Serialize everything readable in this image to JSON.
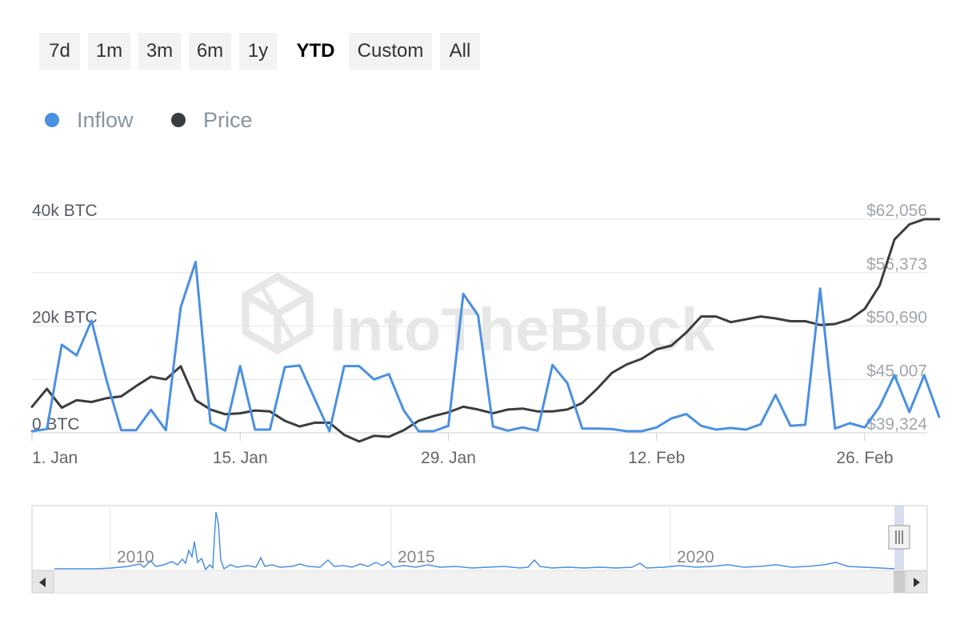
{
  "range_selector": {
    "buttons": [
      "7d",
      "1m",
      "3m",
      "6m",
      "1y",
      "YTD",
      "Custom",
      "All"
    ],
    "active": "YTD"
  },
  "legend": {
    "items": [
      {
        "label": "Inflow",
        "color": "#4a90e2"
      },
      {
        "label": "Price",
        "color": "#3a3d40"
      }
    ]
  },
  "watermark": "IntoTheBlock",
  "chart_data": {
    "type": "line",
    "title": "",
    "x_labels": [
      "1. Jan",
      "15. Jan",
      "29. Jan",
      "12. Feb",
      "26. Feb"
    ],
    "x_label_days": [
      1,
      15,
      29,
      43,
      57
    ],
    "x_range_days": [
      1,
      61.2
    ],
    "y_left": {
      "ticks": [
        "0 BTC",
        "20k BTC",
        "40k BTC"
      ],
      "tick_values": [
        0,
        20000,
        40000
      ],
      "range": [
        0,
        40000
      ]
    },
    "y_right": {
      "ticks": [
        "$39,324",
        "$45,007",
        "$50,690",
        "$56,373",
        "$62,056"
      ],
      "tick_values": [
        39324,
        45007,
        50690,
        56373,
        62056
      ],
      "range": [
        39324,
        62056
      ]
    },
    "grid": true,
    "legend_position": "top-left",
    "series": [
      {
        "name": "Inflow",
        "axis": "left",
        "color": "#4a90e2",
        "points": [
          [
            1,
            300
          ],
          [
            2,
            700
          ],
          [
            3,
            16500
          ],
          [
            4,
            14500
          ],
          [
            5,
            21000
          ],
          [
            6,
            10000
          ],
          [
            7,
            500
          ],
          [
            8,
            500
          ],
          [
            9,
            4300
          ],
          [
            10,
            500
          ],
          [
            11,
            23500
          ],
          [
            12,
            32000
          ],
          [
            13,
            1800
          ],
          [
            14,
            400
          ],
          [
            15,
            12500
          ],
          [
            16,
            600
          ],
          [
            17,
            600
          ],
          [
            18,
            12300
          ],
          [
            19,
            12600
          ],
          [
            20,
            6400
          ],
          [
            21,
            300
          ],
          [
            22,
            12500
          ],
          [
            23,
            12500
          ],
          [
            24,
            10000
          ],
          [
            25,
            11000
          ],
          [
            26,
            4200
          ],
          [
            27,
            300
          ],
          [
            28,
            300
          ],
          [
            29,
            1300
          ],
          [
            30,
            26000
          ],
          [
            31,
            22000
          ],
          [
            32,
            1200
          ],
          [
            33,
            400
          ],
          [
            34,
            1000
          ],
          [
            35,
            400
          ],
          [
            36,
            12700
          ],
          [
            37,
            9300
          ],
          [
            38,
            800
          ],
          [
            39,
            800
          ],
          [
            40,
            700
          ],
          [
            41,
            300
          ],
          [
            42,
            300
          ],
          [
            43,
            1000
          ],
          [
            44,
            2700
          ],
          [
            45,
            3500
          ],
          [
            46,
            1300
          ],
          [
            47,
            600
          ],
          [
            48,
            900
          ],
          [
            49,
            600
          ],
          [
            50,
            1600
          ],
          [
            51,
            7100
          ],
          [
            52,
            1300
          ],
          [
            53,
            1500
          ],
          [
            54,
            27000
          ],
          [
            55,
            800
          ],
          [
            56,
            1800
          ],
          [
            57,
            1000
          ],
          [
            58,
            4900
          ],
          [
            59,
            10800
          ],
          [
            60,
            3900
          ],
          [
            61,
            10800
          ],
          [
            62,
            3000
          ]
        ]
      },
      {
        "name": "Price",
        "axis": "right",
        "color": "#3a3d40",
        "points": [
          [
            1,
            42100
          ],
          [
            2,
            44000
          ],
          [
            3,
            42000
          ],
          [
            4,
            42800
          ],
          [
            5,
            42600
          ],
          [
            6,
            43000
          ],
          [
            7,
            43200
          ],
          [
            8,
            44300
          ],
          [
            9,
            45300
          ],
          [
            10,
            45000
          ],
          [
            11,
            46400
          ],
          [
            12,
            42800
          ],
          [
            13,
            41800
          ],
          [
            14,
            41300
          ],
          [
            15,
            41400
          ],
          [
            16,
            41700
          ],
          [
            17,
            41600
          ],
          [
            18,
            40600
          ],
          [
            19,
            40000
          ],
          [
            20,
            40400
          ],
          [
            21,
            40400
          ],
          [
            22,
            39100
          ],
          [
            23,
            38400
          ],
          [
            24,
            39000
          ],
          [
            25,
            38900
          ],
          [
            26,
            39600
          ],
          [
            27,
            40600
          ],
          [
            28,
            41100
          ],
          [
            29,
            41500
          ],
          [
            30,
            42100
          ],
          [
            31,
            41800
          ],
          [
            32,
            41400
          ],
          [
            33,
            41800
          ],
          [
            34,
            41900
          ],
          [
            35,
            41600
          ],
          [
            36,
            41600
          ],
          [
            37,
            41800
          ],
          [
            38,
            42500
          ],
          [
            39,
            44000
          ],
          [
            40,
            45700
          ],
          [
            41,
            46600
          ],
          [
            42,
            47200
          ],
          [
            43,
            48200
          ],
          [
            44,
            48600
          ],
          [
            45,
            50000
          ],
          [
            46,
            51700
          ],
          [
            47,
            51700
          ],
          [
            48,
            51100
          ],
          [
            49,
            51400
          ],
          [
            50,
            51700
          ],
          [
            51,
            51500
          ],
          [
            52,
            51200
          ],
          [
            53,
            51200
          ],
          [
            54,
            50800
          ],
          [
            55,
            50900
          ],
          [
            56,
            51400
          ],
          [
            57,
            52500
          ],
          [
            58,
            55000
          ],
          [
            59,
            59900
          ],
          [
            60,
            61500
          ],
          [
            61,
            62056
          ],
          [
            62,
            62056
          ]
        ]
      }
    ]
  },
  "navigator": {
    "year_labels": [
      "2010",
      "2015",
      "2020"
    ]
  }
}
